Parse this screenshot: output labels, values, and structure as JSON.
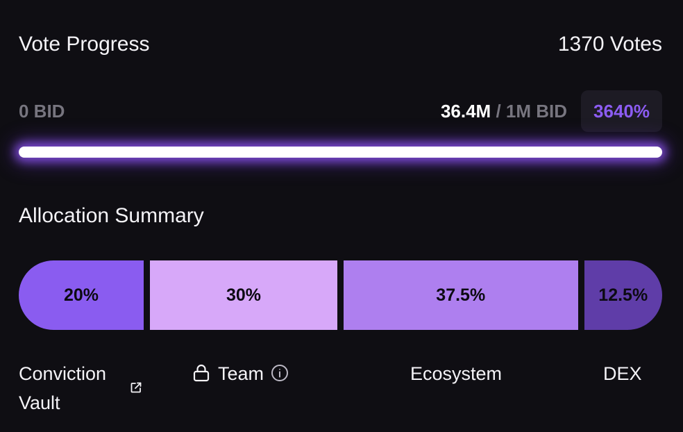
{
  "vote_progress": {
    "title": "Vote Progress",
    "votes": "1370 Votes",
    "min_label": "0 BID",
    "current_amount": "36.4M",
    "separator": "/",
    "target_amount": "1M BID",
    "percent": "3640%",
    "fill_fraction": 1.0
  },
  "allocation": {
    "title": "Allocation Summary",
    "segments": [
      {
        "label": "20%",
        "value": 20,
        "color": "#8a5cf0",
        "name": "Conviction Vault"
      },
      {
        "label": "30%",
        "value": 30,
        "color": "#d7a8f9",
        "name": "Team"
      },
      {
        "label": "37.5%",
        "value": 37.5,
        "color": "#ae7fef",
        "name": "Ecosystem"
      },
      {
        "label": "12.5%",
        "value": 12.5,
        "color": "#5f3da8",
        "name": "DEX"
      }
    ]
  },
  "icons": {
    "external_link": "external-link-icon",
    "lock": "lock-icon",
    "info": "info-icon"
  },
  "colors": {
    "background": "#0f0e13",
    "accent": "#8c5cf2",
    "muted_text": "#77757f"
  }
}
